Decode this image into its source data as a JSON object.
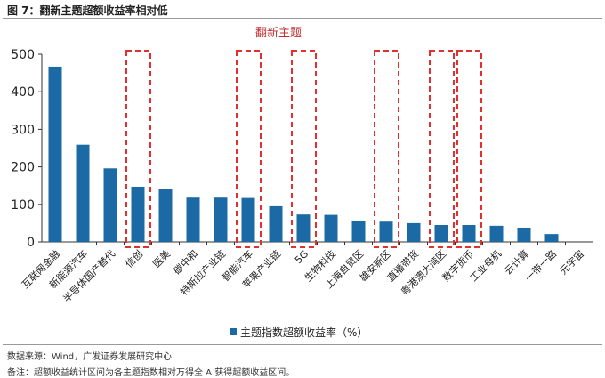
{
  "figure_title": "图 7：翻新主题超额收益率相对低",
  "source": "数据来源：Wind，广发证券发展研究中心",
  "note": "备注：超额收益统计区间为各主题指数相对万得全 A 获得超额收益区间。",
  "chart_data": {
    "type": "bar",
    "annotation": "翻新主题",
    "categories": [
      "互联网金融",
      "新能源汽车",
      "半导体国产替代",
      "信创",
      "医美",
      "碳中和",
      "特斯拉产业链",
      "智能汽车",
      "苹果产业链",
      "5G",
      "生物科技",
      "上海自贸区",
      "雄安新区",
      "直播带货",
      "粤港澳大湾区",
      "数字货币",
      "工业母机",
      "云计算",
      "一带一路",
      "元宇宙"
    ],
    "series": [
      {
        "name": "主题指数超额收益率（%）",
        "values": [
          467,
          259,
          196,
          147,
          140,
          118,
          118,
          117,
          95,
          73,
          72,
          57,
          54,
          50,
          45,
          45,
          43,
          38,
          21,
          0
        ]
      }
    ],
    "highlighted": [
      "信创",
      "智能汽车",
      "5G",
      "雄安新区",
      "粤港澳大湾区",
      "数字货币"
    ],
    "yticks": [
      0,
      100,
      200,
      300,
      400,
      500
    ],
    "ylim": [
      0,
      500
    ],
    "legend_position": "bottom",
    "grid": false,
    "colors": {
      "bar": "#1b6aa5",
      "highlight": "#e03030"
    }
  }
}
